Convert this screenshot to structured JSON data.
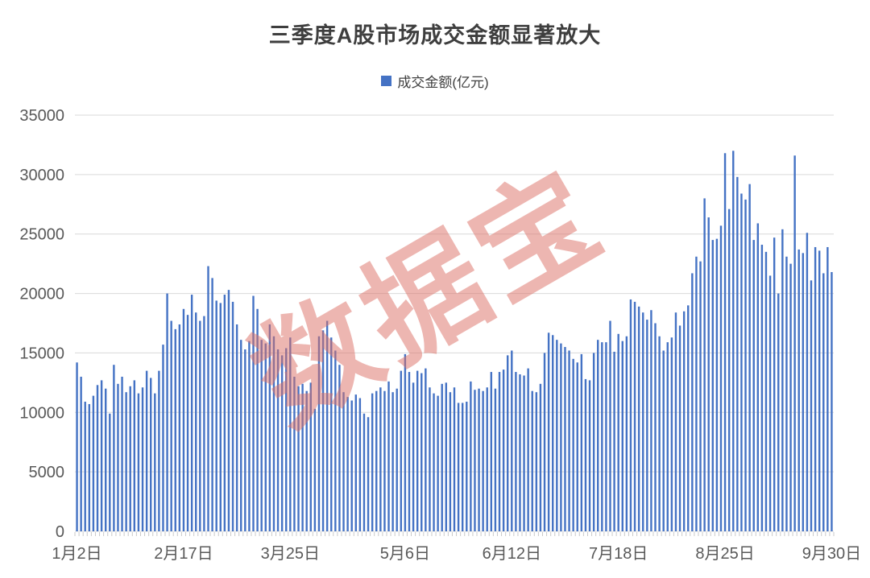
{
  "header": {
    "title": "三季度A股市场成交金额显著放大"
  },
  "legend": {
    "label": "成交金额(亿元)",
    "color": "#4472C4"
  },
  "watermark": {
    "text": "数据宝",
    "color": "#DD7066"
  },
  "chart_data": {
    "type": "bar",
    "title": "三季度A股市场成交金额显著放大",
    "series_name": "成交金额(亿元)",
    "ylabel": "成交金额(亿元)",
    "xlabel": "",
    "ylim": [
      0,
      35000
    ],
    "y_ticks": [
      0,
      5000,
      10000,
      15000,
      20000,
      25000,
      30000,
      35000
    ],
    "grid": "horizontal",
    "legend_position": "top",
    "x_tick_labels": [
      "1月2日",
      "2月17日",
      "3月25日",
      "5月6日",
      "6月12日",
      "7月18日",
      "8月25日",
      "9月30日"
    ],
    "x_tick_indices": [
      0,
      26,
      52,
      80,
      106,
      132,
      158,
      184
    ],
    "bar_color": "#4472C4",
    "gridline_color": "#D9D9D9",
    "axis_text_color": "#595959",
    "values": [
      14200,
      13000,
      10900,
      10700,
      11400,
      12300,
      12700,
      12000,
      9900,
      14000,
      12400,
      13000,
      11700,
      12200,
      12700,
      11600,
      12100,
      13500,
      12900,
      11600,
      13500,
      15700,
      20000,
      17700,
      17000,
      17400,
      18700,
      18200,
      19900,
      18400,
      17700,
      18100,
      22300,
      21300,
      19400,
      19200,
      19900,
      20300,
      19300,
      17400,
      16100,
      15300,
      16000,
      19800,
      18700,
      16100,
      15800,
      17400,
      16400,
      15300,
      14800,
      15400,
      16300,
      13000,
      12200,
      12400,
      11800,
      12500,
      10300,
      16400,
      16900,
      17700,
      16300,
      15200,
      14000,
      11700,
      11300,
      11000,
      11500,
      11200,
      9900,
      9600,
      11600,
      11800,
      12100,
      11800,
      12600,
      11700,
      12000,
      13500,
      14900,
      13400,
      12500,
      13500,
      13300,
      13700,
      12100,
      11600,
      11400,
      12400,
      12500,
      11700,
      12100,
      10800,
      10800,
      10900,
      12600,
      11900,
      12000,
      11800,
      12100,
      13400,
      12000,
      13400,
      13600,
      14800,
      15200,
      13400,
      13200,
      13100,
      13700,
      11800,
      11700,
      12400,
      15000,
      16700,
      16500,
      16100,
      15800,
      15500,
      15200,
      14500,
      14200,
      14900,
      12800,
      12700,
      15000,
      16100,
      15900,
      15900,
      17700,
      15100,
      16600,
      16000,
      16400,
      19500,
      19300,
      18900,
      18400,
      17800,
      18600,
      17500,
      16400,
      15200,
      15900,
      16300,
      18400,
      17300,
      18500,
      19000,
      21700,
      23100,
      22700,
      28000,
      26400,
      24500,
      24600,
      25700,
      31800,
      27100,
      32000,
      29800,
      28400,
      27900,
      29200,
      24500,
      25900,
      24100,
      23500,
      21500,
      24700,
      20000,
      25400,
      23100,
      22500,
      31600,
      23700,
      23400,
      25100,
      21100,
      23900,
      23600,
      21700,
      23900,
      21800
    ]
  }
}
